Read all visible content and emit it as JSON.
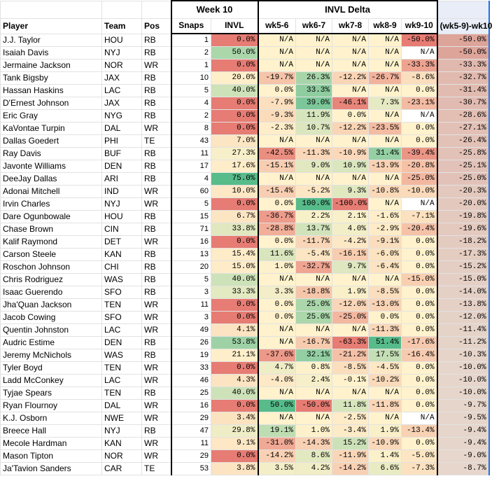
{
  "header": {
    "group_week": "Week 10",
    "group_delta": "INVL Delta",
    "columns": [
      "Player",
      "Team",
      "Pos",
      "Snaps",
      "INVL",
      "wk5-6",
      "wk6-7",
      "wk7-8",
      "wk8-9",
      "wk9-10",
      "(wk5-9)-wk10"
    ]
  },
  "colors": {
    "green": "#57bb8a",
    "red": "#e67c73",
    "yellow": "#fff2cc",
    "last_col_base": "#e6d7cc",
    "last_col_neg": "#dda49a"
  },
  "rows": [
    {
      "player": "J.J. Taylor",
      "team": "HOU",
      "pos": "RB",
      "snaps": "1",
      "invl": "0.0%",
      "d56": "N/A",
      "d67": "N/A",
      "d78": "N/A",
      "d89": "N/A",
      "d910": "-50.0%",
      "last": "-50.0%"
    },
    {
      "player": "Isaiah Davis",
      "team": "NYJ",
      "pos": "RB",
      "snaps": "2",
      "invl": "50.0%",
      "d56": "N/A",
      "d67": "N/A",
      "d78": "N/A",
      "d89": "N/A",
      "d910": "N/A",
      "last": "-50.0%"
    },
    {
      "player": "Jermaine Jackson",
      "team": "NOR",
      "pos": "WR",
      "snaps": "1",
      "invl": "0.0%",
      "d56": "N/A",
      "d67": "N/A",
      "d78": "N/A",
      "d89": "N/A",
      "d910": "-33.3%",
      "last": "-33.3%"
    },
    {
      "player": "Tank Bigsby",
      "team": "JAX",
      "pos": "RB",
      "snaps": "10",
      "invl": "20.0%",
      "d56": "-19.7%",
      "d67": "26.3%",
      "d78": "-12.2%",
      "d89": "-26.7%",
      "d910": "-8.6%",
      "last": "-32.7%"
    },
    {
      "player": "Hassan Haskins",
      "team": "LAC",
      "pos": "RB",
      "snaps": "5",
      "invl": "40.0%",
      "d56": "0.0%",
      "d67": "33.3%",
      "d78": "N/A",
      "d89": "N/A",
      "d910": "0.0%",
      "last": "-31.4%"
    },
    {
      "player": "D'Ernest Johnson",
      "team": "JAX",
      "pos": "RB",
      "snaps": "4",
      "invl": "0.0%",
      "d56": "-7.9%",
      "d67": "39.0%",
      "d78": "-46.1%",
      "d89": "7.3%",
      "d910": "-23.1%",
      "last": "-30.7%"
    },
    {
      "player": "Eric Gray",
      "team": "NYG",
      "pos": "RB",
      "snaps": "2",
      "invl": "0.0%",
      "d56": "-9.3%",
      "d67": "11.9%",
      "d78": "0.0%",
      "d89": "N/A",
      "d910": "N/A",
      "last": "-28.6%"
    },
    {
      "player": "KaVontae Turpin",
      "team": "DAL",
      "pos": "WR",
      "snaps": "8",
      "invl": "0.0%",
      "d56": "-2.3%",
      "d67": "10.7%",
      "d78": "-12.2%",
      "d89": "-23.5%",
      "d910": "0.0%",
      "last": "-27.1%"
    },
    {
      "player": "Dallas Goedert",
      "team": "PHI",
      "pos": "TE",
      "snaps": "43",
      "invl": "7.0%",
      "d56": "N/A",
      "d67": "N/A",
      "d78": "N/A",
      "d89": "N/A",
      "d910": "0.0%",
      "last": "-26.4%"
    },
    {
      "player": "Ray Davis",
      "team": "BUF",
      "pos": "RB",
      "snaps": "11",
      "invl": "27.3%",
      "d56": "-42.5%",
      "d67": "-11.3%",
      "d78": "-10.9%",
      "d89": "31.4%",
      "d910": "-39.4%",
      "last": "-25.8%"
    },
    {
      "player": "Javonte Williams",
      "team": "DEN",
      "pos": "RB",
      "snaps": "17",
      "invl": "17.6%",
      "d56": "-15.1%",
      "d67": "9.0%",
      "d78": "10.9%",
      "d89": "-13.9%",
      "d910": "-20.8%",
      "last": "-25.1%"
    },
    {
      "player": "DeeJay Dallas",
      "team": "ARI",
      "pos": "RB",
      "snaps": "4",
      "invl": "75.0%",
      "d56": "N/A",
      "d67": "N/A",
      "d78": "N/A",
      "d89": "N/A",
      "d910": "-25.0%",
      "last": "-25.0%"
    },
    {
      "player": "Adonai Mitchell",
      "team": "IND",
      "pos": "WR",
      "snaps": "60",
      "invl": "10.0%",
      "d56": "-15.4%",
      "d67": "-5.2%",
      "d78": "9.3%",
      "d89": "-10.8%",
      "d910": "-10.0%",
      "last": "-20.3%"
    },
    {
      "player": "Irvin Charles",
      "team": "NYJ",
      "pos": "WR",
      "snaps": "5",
      "invl": "0.0%",
      "d56": "0.0%",
      "d67": "100.0%",
      "d78": "-100.0%",
      "d89": "N/A",
      "d910": "N/A",
      "last": "-20.0%"
    },
    {
      "player": "Dare Ogunbowale",
      "team": "HOU",
      "pos": "RB",
      "snaps": "15",
      "invl": "6.7%",
      "d56": "-36.7%",
      "d67": "2.2%",
      "d78": "2.1%",
      "d89": "-1.6%",
      "d910": "-7.1%",
      "last": "-19.8%"
    },
    {
      "player": "Chase Brown",
      "team": "CIN",
      "pos": "RB",
      "snaps": "71",
      "invl": "33.8%",
      "d56": "-28.8%",
      "d67": "13.7%",
      "d78": "4.0%",
      "d89": "-2.9%",
      "d910": "-20.4%",
      "last": "-19.6%"
    },
    {
      "player": "Kalif Raymond",
      "team": "DET",
      "pos": "WR",
      "snaps": "16",
      "invl": "0.0%",
      "d56": "0.0%",
      "d67": "-11.7%",
      "d78": "-4.2%",
      "d89": "-9.1%",
      "d910": "0.0%",
      "last": "-18.2%"
    },
    {
      "player": "Carson Steele",
      "team": "KAN",
      "pos": "RB",
      "snaps": "13",
      "invl": "15.4%",
      "d56": "11.6%",
      "d67": "-5.4%",
      "d78": "-16.1%",
      "d89": "-6.0%",
      "d910": "0.0%",
      "last": "-17.3%"
    },
    {
      "player": "Roschon Johnson",
      "team": "CHI",
      "pos": "RB",
      "snaps": "20",
      "invl": "15.0%",
      "d56": "1.0%",
      "d67": "-32.7%",
      "d78": "9.7%",
      "d89": "-6.4%",
      "d910": "0.0%",
      "last": "-15.2%"
    },
    {
      "player": "Chris Rodriguez",
      "team": "WAS",
      "pos": "RB",
      "snaps": "5",
      "invl": "40.0%",
      "d56": "N/A",
      "d67": "N/A",
      "d78": "N/A",
      "d89": "N/A",
      "d910": "-15.0%",
      "last": "-15.0%"
    },
    {
      "player": "Isaac Guerendo",
      "team": "SFO",
      "pos": "RB",
      "snaps": "3",
      "invl": "33.3%",
      "d56": "3.3%",
      "d67": "-18.8%",
      "d78": "1.9%",
      "d89": "-8.5%",
      "d910": "0.0%",
      "last": "-14.0%"
    },
    {
      "player": "Jha'Quan Jackson",
      "team": "TEN",
      "pos": "WR",
      "snaps": "11",
      "invl": "0.0%",
      "d56": "0.0%",
      "d67": "25.0%",
      "d78": "-12.0%",
      "d89": "-13.0%",
      "d910": "0.0%",
      "last": "-13.8%"
    },
    {
      "player": "Jacob Cowing",
      "team": "SFO",
      "pos": "WR",
      "snaps": "3",
      "invl": "0.0%",
      "d56": "0.0%",
      "d67": "25.0%",
      "d78": "-25.0%",
      "d89": "0.0%",
      "d910": "0.0%",
      "last": "-12.0%"
    },
    {
      "player": "Quentin Johnston",
      "team": "LAC",
      "pos": "WR",
      "snaps": "49",
      "invl": "4.1%",
      "d56": "N/A",
      "d67": "N/A",
      "d78": "N/A",
      "d89": "-11.3%",
      "d910": "0.0%",
      "last": "-11.4%"
    },
    {
      "player": "Audric Estime",
      "team": "DEN",
      "pos": "RB",
      "snaps": "26",
      "invl": "53.8%",
      "d56": "N/A",
      "d67": "-16.7%",
      "d78": "-63.3%",
      "d89": "51.4%",
      "d910": "-17.6%",
      "last": "-11.2%"
    },
    {
      "player": "Jeremy McNichols",
      "team": "WAS",
      "pos": "RB",
      "snaps": "19",
      "invl": "21.1%",
      "d56": "-37.6%",
      "d67": "32.1%",
      "d78": "-21.2%",
      "d89": "17.5%",
      "d910": "-16.4%",
      "last": "-10.3%"
    },
    {
      "player": "Tyler Boyd",
      "team": "TEN",
      "pos": "WR",
      "snaps": "33",
      "invl": "0.0%",
      "d56": "4.7%",
      "d67": "0.8%",
      "d78": "-8.5%",
      "d89": "-4.5%",
      "d910": "0.0%",
      "last": "-10.0%"
    },
    {
      "player": "Ladd McConkey",
      "team": "LAC",
      "pos": "WR",
      "snaps": "46",
      "invl": "4.3%",
      "d56": "-4.0%",
      "d67": "2.4%",
      "d78": "-0.1%",
      "d89": "-10.2%",
      "d910": "0.0%",
      "last": "-10.0%"
    },
    {
      "player": "Tyjae Spears",
      "team": "TEN",
      "pos": "RB",
      "snaps": "25",
      "invl": "40.0%",
      "d56": "N/A",
      "d67": "N/A",
      "d78": "N/A",
      "d89": "N/A",
      "d910": "0.0%",
      "last": "-10.0%"
    },
    {
      "player": "Ryan Flournoy",
      "team": "DAL",
      "pos": "WR",
      "snaps": "16",
      "invl": "0.0%",
      "d56": "50.0%",
      "d67": "-50.0%",
      "d78": "11.8%",
      "d89": "-11.8%",
      "d910": "0.0%",
      "last": "-9.7%"
    },
    {
      "player": "K.J. Osborn",
      "team": "NWE",
      "pos": "WR",
      "snaps": "29",
      "invl": "3.4%",
      "d56": "N/A",
      "d67": "N/A",
      "d78": "-2.5%",
      "d89": "N/A",
      "d910": "N/A",
      "last": "-9.5%"
    },
    {
      "player": "Breece Hall",
      "team": "NYJ",
      "pos": "RB",
      "snaps": "47",
      "invl": "29.8%",
      "d56": "19.1%",
      "d67": "1.0%",
      "d78": "-3.4%",
      "d89": "1.9%",
      "d910": "-13.4%",
      "last": "-9.4%"
    },
    {
      "player": "Mecole Hardman",
      "team": "KAN",
      "pos": "WR",
      "snaps": "11",
      "invl": "9.1%",
      "d56": "-31.0%",
      "d67": "-14.3%",
      "d78": "15.2%",
      "d89": "-10.9%",
      "d910": "0.0%",
      "last": "-9.4%"
    },
    {
      "player": "Mason Tipton",
      "team": "NOR",
      "pos": "WR",
      "snaps": "29",
      "invl": "0.0%",
      "d56": "-14.2%",
      "d67": "8.6%",
      "d78": "-11.9%",
      "d89": "1.4%",
      "d910": "-5.0%",
      "last": "-9.0%"
    },
    {
      "player": "Ja'Tavion Sanders",
      "team": "CAR",
      "pos": "TE",
      "snaps": "53",
      "invl": "3.8%",
      "d56": "3.5%",
      "d67": "4.2%",
      "d78": "-14.2%",
      "d89": "6.6%",
      "d910": "-7.3%",
      "last": "-8.7%"
    }
  ]
}
